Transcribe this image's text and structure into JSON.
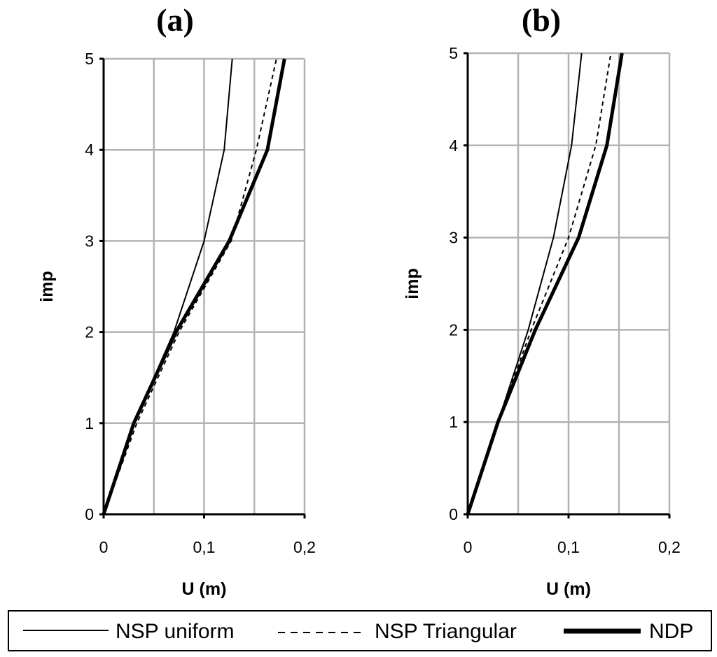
{
  "chart_data": [
    {
      "type": "line",
      "title": "(a)",
      "xlabel": "U (m)",
      "ylabel": "imp",
      "xlim": [
        0,
        0.2
      ],
      "ylim": [
        0,
        5
      ],
      "xtick_labels": [
        "0",
        "0,1",
        "0,2"
      ],
      "ytick_labels": [
        "0",
        "1",
        "2",
        "3",
        "4",
        "5"
      ],
      "grid": true,
      "series": [
        {
          "name": "NSP uniform",
          "style": "thin-solid",
          "x": [
            0,
            0.03,
            0.07,
            0.1,
            0.12,
            0.128
          ],
          "y": [
            0,
            1,
            2,
            3,
            4,
            5
          ]
        },
        {
          "name": "NSP Triangular",
          "style": "dashed",
          "x": [
            0,
            0.033,
            0.075,
            0.127,
            0.152,
            0.172
          ],
          "y": [
            0,
            1,
            2,
            3,
            4,
            5
          ]
        },
        {
          "name": "NDP",
          "style": "thick-solid",
          "x": [
            0,
            0.03,
            0.072,
            0.125,
            0.163,
            0.18
          ],
          "y": [
            0,
            1,
            2,
            3,
            4,
            5
          ]
        }
      ]
    },
    {
      "type": "line",
      "title": "(b)",
      "xlabel": "U (m)",
      "ylabel": "imp",
      "xlim": [
        0,
        0.2
      ],
      "ylim": [
        0,
        5
      ],
      "xtick_labels": [
        "0",
        "0,1",
        "0,2"
      ],
      "ytick_labels": [
        "0",
        "1",
        "2",
        "3",
        "4",
        "5"
      ],
      "grid": true,
      "series": [
        {
          "name": "NSP uniform",
          "style": "thin-solid",
          "x": [
            0,
            0.03,
            0.06,
            0.085,
            0.103,
            0.113
          ],
          "y": [
            0,
            1,
            2,
            3,
            4,
            5
          ]
        },
        {
          "name": "NSP Triangular",
          "style": "dashed",
          "x": [
            0,
            0.03,
            0.063,
            0.1,
            0.127,
            0.142
          ],
          "y": [
            0,
            1,
            2,
            3,
            4,
            5
          ]
        },
        {
          "name": "NDP",
          "style": "thick-solid",
          "x": [
            0,
            0.03,
            0.067,
            0.11,
            0.138,
            0.153
          ],
          "y": [
            0,
            1,
            2,
            3,
            4,
            5
          ]
        }
      ]
    }
  ],
  "legend": {
    "items": [
      {
        "label": "NSP uniform",
        "style": "thin-solid"
      },
      {
        "label": "NSP Triangular",
        "style": "dashed"
      },
      {
        "label": "NDP",
        "style": "thick-solid"
      }
    ]
  },
  "colors": {
    "line": "#000000",
    "grid": "#b3b3b3"
  }
}
